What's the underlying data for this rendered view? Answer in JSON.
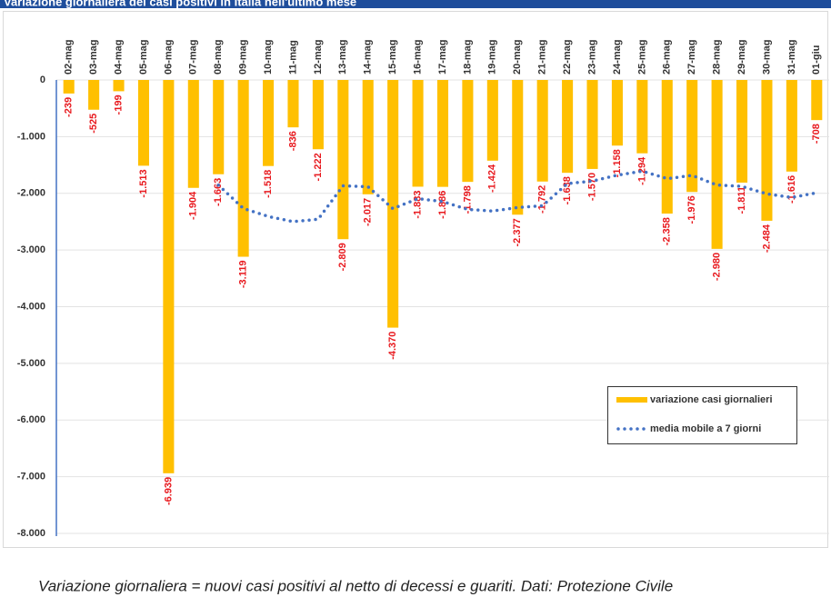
{
  "chart_data": {
    "type": "bar",
    "title": "Variazione giornaliera dei casi positivi in Italia nell'ultimo mese",
    "note": "Variazione giornaliera = nuovi casi positivi al netto di decessi e guariti. Dati: Protezione Civile",
    "categories": [
      "02-mag",
      "03-mag",
      "04-mag",
      "05-mag",
      "06-mag",
      "07-mag",
      "08-mag",
      "09-mag",
      "10-mag",
      "11-mag",
      "12-mag",
      "13-mag",
      "14-mag",
      "15-mag",
      "16-mag",
      "17-mag",
      "18-mag",
      "19-mag",
      "20-mag",
      "21-mag",
      "22-mag",
      "23-mag",
      "24-mag",
      "25-mag",
      "26-mag",
      "27-mag",
      "28-mag",
      "29-mag",
      "30-mag",
      "31-mag",
      "01-giu"
    ],
    "series": [
      {
        "name": "variazione casi giornalieri",
        "type": "bar",
        "color": "#FFC000",
        "values": [
          -239,
          -525,
          -199,
          -1513,
          -6939,
          -1904,
          -1663,
          -3119,
          -1518,
          -836,
          -1222,
          -2809,
          -2017,
          -4370,
          -1883,
          -1886,
          -1798,
          -1424,
          -2377,
          -1792,
          -1638,
          -1570,
          -1158,
          -1294,
          -2358,
          -1976,
          -2980,
          -1811,
          -2484,
          -1616,
          -708
        ],
        "value_labels": [
          "-239",
          "-525",
          "-199",
          "-1.513",
          "-6.939",
          "-1.904",
          "-1.663",
          "-3.119",
          "-1.518",
          "-836",
          "-1.222",
          "-2.809",
          "-2.017",
          "-4.370",
          "-1.883",
          "-1.886",
          "-1.798",
          "-1.424",
          "-2.377",
          "-1.792",
          "-1.638",
          "-1.570",
          "-1.158",
          "-1.294",
          "-2.358",
          "-1.976",
          "-2.980",
          "-1.811",
          "-2.484",
          "-1.616",
          "-708"
        ]
      },
      {
        "name": "media mobile a 7 giorni",
        "type": "line",
        "color": "#4472C4",
        "values": [
          null,
          null,
          null,
          null,
          null,
          null,
          -1855,
          -2266,
          -2408,
          -2499,
          -2457,
          -1867,
          -1883,
          -2270,
          -2094,
          -2146,
          -2284,
          -2312,
          -2251,
          -2219,
          -1828,
          -1784,
          -1680,
          -1608,
          -1741,
          -1684,
          -1853,
          -1878,
          -2009,
          -2074,
          -1990
        ]
      }
    ],
    "ylim": [
      -8000,
      0
    ],
    "yticks": [
      0,
      {
        "value": -1000,
        "label": "-1.000"
      },
      {
        "value": -2000,
        "label": "-2.000"
      },
      {
        "value": -3000,
        "label": "-3.000"
      },
      {
        "value": -4000,
        "label": "-4.000"
      },
      {
        "value": -5000,
        "label": "-5.000"
      },
      {
        "value": -6000,
        "label": "-6.000"
      },
      {
        "value": -7000,
        "label": "-7.000"
      },
      {
        "value": -8000,
        "label": "-8.000"
      }
    ],
    "grid": true,
    "value_label_color": "#E8191E"
  }
}
